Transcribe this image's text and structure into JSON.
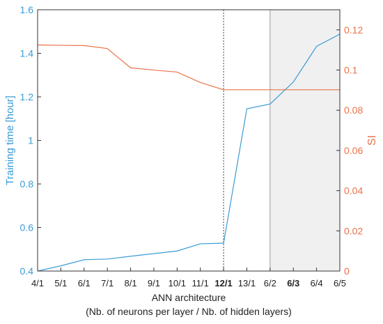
{
  "chart_data": {
    "type": "line",
    "x_categories": [
      "4/1",
      "5/1",
      "6/1",
      "7/1",
      "8/1",
      "9/1",
      "10/1",
      "11/1",
      "12/1",
      "13/1",
      "6/2",
      "6/3",
      "6/4",
      "6/5"
    ],
    "bold_categories": [
      "12/1",
      "6/3"
    ],
    "xlabel_line1": "ANN architecture",
    "xlabel_line2": "(Nb. of neurons per layer / Nb. of hidden layers)",
    "y_left": {
      "label": "Training time [hour]",
      "ylim": [
        0.4,
        1.6
      ],
      "ticks": [
        "0.4",
        "0.6",
        "0.8",
        "1",
        "1.2",
        "1.4",
        "1.6"
      ],
      "color": "#3a9bd5"
    },
    "y_right": {
      "label": "SI",
      "ylim": [
        0,
        0.13
      ],
      "ticks": [
        "0",
        "0.02",
        "0.04",
        "0.06",
        "0.08",
        "0.1",
        "0.12"
      ],
      "color": "#e8734a"
    },
    "series": [
      {
        "axis": "left",
        "color": "#3a9bd5",
        "values": [
          0.4,
          0.424,
          0.452,
          0.455,
          0.468,
          0.48,
          0.492,
          0.525,
          0.528,
          1.145,
          1.167,
          1.268,
          1.432,
          1.488
        ]
      },
      {
        "axis": "right",
        "color": "#e8734a",
        "values": [
          0.1125,
          0.1123,
          0.1122,
          0.1107,
          0.1011,
          0.1,
          0.099,
          0.0938,
          0.0902,
          0.0902,
          0.0902,
          0.0902,
          0.0902,
          0.0902
        ]
      }
    ],
    "vline_category": "12/1",
    "shaded_from_category": "6/2",
    "grid": false
  }
}
